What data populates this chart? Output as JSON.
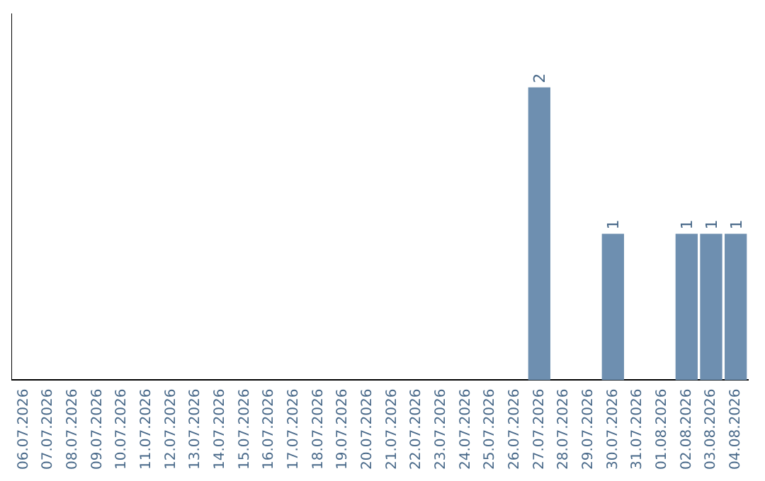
{
  "chart_data": {
    "type": "bar",
    "categories": [
      "06.07.2026",
      "07.07.2026",
      "08.07.2026",
      "09.07.2026",
      "10.07.2026",
      "11.07.2026",
      "12.07.2026",
      "13.07.2026",
      "14.07.2026",
      "15.07.2026",
      "16.07.2026",
      "17.07.2026",
      "18.07.2026",
      "19.07.2026",
      "20.07.2026",
      "21.07.2026",
      "22.07.2026",
      "23.07.2026",
      "24.07.2026",
      "25.07.2026",
      "26.07.2026",
      "27.07.2026",
      "28.07.2026",
      "29.07.2026",
      "30.07.2026",
      "31.07.2026",
      "01.08.2026",
      "02.08.2026",
      "03.08.2026",
      "04.08.2026"
    ],
    "values": [
      null,
      null,
      null,
      null,
      null,
      null,
      null,
      null,
      null,
      null,
      null,
      null,
      null,
      null,
      null,
      null,
      null,
      null,
      null,
      null,
      null,
      2,
      null,
      null,
      1,
      null,
      null,
      1,
      1,
      1
    ],
    "data_labels": true,
    "color": "#6e8fb0",
    "tick_labels": "x",
    "grid": false,
    "legend": false
  }
}
